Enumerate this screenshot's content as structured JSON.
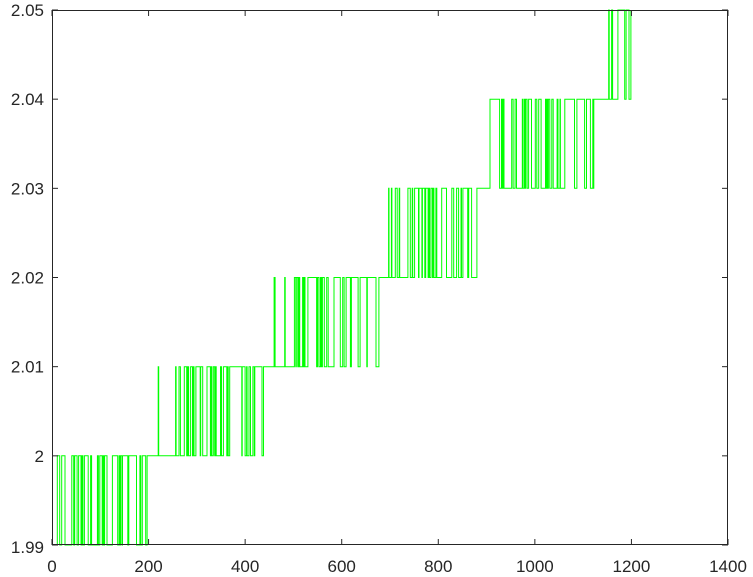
{
  "chart_data": {
    "type": "line",
    "title": "",
    "xlabel": "",
    "ylabel": "",
    "xlim": [
      0,
      1400
    ],
    "ylim": [
      1.99,
      2.05
    ],
    "x_ticks": [
      "0",
      "200",
      "400",
      "600",
      "800",
      "1000",
      "1200",
      "1400"
    ],
    "y_ticks": [
      "1.99",
      "2",
      "2.01",
      "2.02",
      "2.03",
      "2.04",
      "2.05"
    ],
    "grid": false,
    "legend": "none",
    "line_color": "#00ff00",
    "axis_color": "#262626",
    "series": [
      {
        "description": "Quantized staircase signal toggling between adjacent 0.01 levels",
        "segments": [
          {
            "x_start": 0,
            "x_end": 220,
            "low": 1.99,
            "high": 2.0
          },
          {
            "x_start": 220,
            "x_end": 460,
            "low": 2.0,
            "high": 2.01
          },
          {
            "x_start": 460,
            "x_end": 685,
            "low": 2.01,
            "high": 2.02
          },
          {
            "x_start": 685,
            "x_end": 900,
            "low": 2.02,
            "high": 2.03
          },
          {
            "x_start": 900,
            "x_end": 1145,
            "low": 2.03,
            "high": 2.04
          },
          {
            "x_start": 1145,
            "x_end": 1200,
            "low": 2.04,
            "high": 2.05
          }
        ]
      }
    ]
  }
}
